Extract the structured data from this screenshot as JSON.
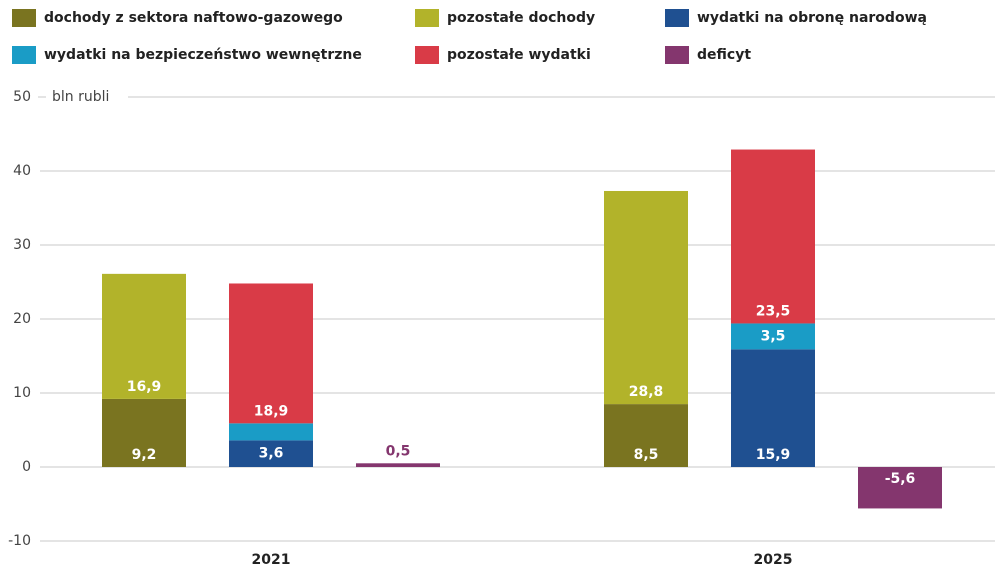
{
  "chart_data": {
    "type": "bar",
    "stacked": true,
    "y_label": "bln rubli",
    "categories": [
      "2021",
      "2025"
    ],
    "series": [
      {
        "name": "dochody z sektora naftowo-gazowego",
        "color": "#7a7420",
        "stack": 0,
        "values": [
          9.2,
          8.5
        ],
        "value_labels": [
          "9,2",
          "8,5"
        ]
      },
      {
        "name": "pozostałe dochody",
        "color": "#b2b32a",
        "stack": 0,
        "values": [
          16.9,
          28.8
        ],
        "value_labels": [
          "16,9",
          "28,8"
        ]
      },
      {
        "name": "wydatki na obronę narodową",
        "color": "#1f5091",
        "stack": 1,
        "values": [
          3.6,
          15.9
        ],
        "value_labels": [
          "3,6",
          "15,9"
        ]
      },
      {
        "name": "wydatki na bezpieczeństwo wewnętrzne",
        "color": "#1a9cc6",
        "stack": 1,
        "values": [
          2.3,
          3.5
        ],
        "value_labels": [
          "2,3",
          "3,5"
        ]
      },
      {
        "name": "pozostałe wydatki",
        "color": "#d93b47",
        "stack": 1,
        "values": [
          18.9,
          23.5
        ],
        "value_labels": [
          "18,9",
          "23,5"
        ]
      },
      {
        "name": "deficyt",
        "color": "#84366e",
        "stack": 2,
        "values": [
          0.5,
          -5.6
        ],
        "value_labels": [
          "0,5",
          "-5,6"
        ]
      }
    ],
    "ylim": [
      -10,
      50
    ],
    "yticks": [
      -10,
      0,
      10,
      20,
      30,
      40,
      50
    ],
    "grid": true
  }
}
